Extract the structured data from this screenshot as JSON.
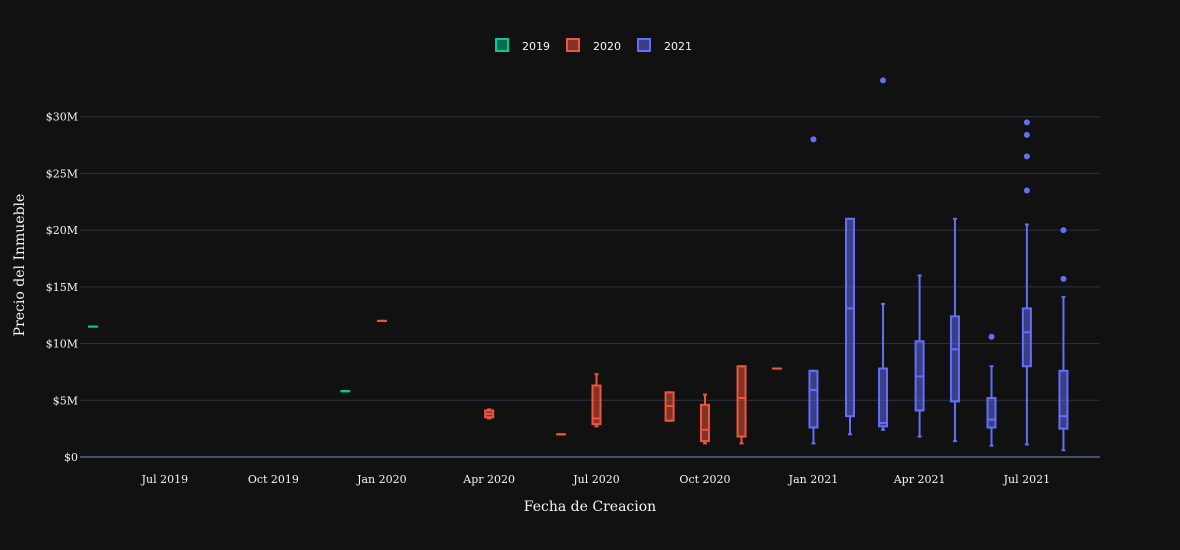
{
  "chart_data": {
    "type": "box",
    "title": "",
    "xlabel": "Fecha de Creacion",
    "ylabel": "Precio del Inmueble",
    "x_ticks": [
      {
        "date": "2019-07-01",
        "label": "Jul 2019"
      },
      {
        "date": "2019-10-01",
        "label": "Oct 2019"
      },
      {
        "date": "2020-01-01",
        "label": "Jan 2020"
      },
      {
        "date": "2020-04-01",
        "label": "Apr 2020"
      },
      {
        "date": "2020-07-01",
        "label": "Jul 2020"
      },
      {
        "date": "2020-10-01",
        "label": "Oct 2020"
      },
      {
        "date": "2021-01-01",
        "label": "Jan 2021"
      },
      {
        "date": "2021-04-01",
        "label": "Apr 2021"
      },
      {
        "date": "2021-07-01",
        "label": "Jul 2021"
      }
    ],
    "y_ticks": [
      {
        "value": 0,
        "label": "$0"
      },
      {
        "value": 5000000,
        "label": "$5M"
      },
      {
        "value": 10000000,
        "label": "$10M"
      },
      {
        "value": 15000000,
        "label": "$15M"
      },
      {
        "value": 20000000,
        "label": "$20M"
      },
      {
        "value": 25000000,
        "label": "$25M"
      },
      {
        "value": 30000000,
        "label": "$30M"
      }
    ],
    "xlim": [
      "2019-04-20",
      "2021-09-01"
    ],
    "ylim": [
      0,
      35000000
    ],
    "grid": true,
    "legend_position": "top-center",
    "series": [
      {
        "name": "2019",
        "color": "#00cc96",
        "boxes": [
          {
            "date": "2019-05-01",
            "min": 11500000,
            "q1": 11500000,
            "median": 11500000,
            "q3": 11500000,
            "max": 11500000,
            "outliers": []
          },
          {
            "date": "2019-12-01",
            "min": 5800000,
            "q1": 5800000,
            "median": 5800000,
            "q3": 5800000,
            "max": 5800000,
            "outliers": []
          }
        ]
      },
      {
        "name": "2020",
        "color": "#ef553b",
        "boxes": [
          {
            "date": "2020-01-01",
            "min": 12000000,
            "q1": 12000000,
            "median": 12000000,
            "q3": 12000000,
            "max": 12000000,
            "outliers": []
          },
          {
            "date": "2020-04-01",
            "min": 3400000,
            "q1": 3500000,
            "median": 3800000,
            "q3": 4100000,
            "max": 4200000,
            "outliers": []
          },
          {
            "date": "2020-06-01",
            "min": 2000000,
            "q1": 2000000,
            "median": 2000000,
            "q3": 2000000,
            "max": 2000000,
            "outliers": []
          },
          {
            "date": "2020-07-01",
            "min": 2700000,
            "q1": 2900000,
            "median": 3400000,
            "q3": 6300000,
            "max": 7300000,
            "outliers": []
          },
          {
            "date": "2020-09-01",
            "min": 3200000,
            "q1": 3200000,
            "median": 4500000,
            "q3": 5700000,
            "max": 5700000,
            "outliers": []
          },
          {
            "date": "2020-10-01",
            "min": 1200000,
            "q1": 1400000,
            "median": 2400000,
            "q3": 4600000,
            "max": 5500000,
            "outliers": []
          },
          {
            "date": "2020-11-01",
            "min": 1200000,
            "q1": 1800000,
            "median": 5200000,
            "q3": 8000000,
            "max": 8000000,
            "outliers": []
          },
          {
            "date": "2020-12-01",
            "min": 7800000,
            "q1": 7800000,
            "median": 7800000,
            "q3": 7800000,
            "max": 7800000,
            "outliers": []
          }
        ]
      },
      {
        "name": "2021",
        "color": "#636efa",
        "boxes": [
          {
            "date": "2021-01-01",
            "min": 1200000,
            "q1": 2600000,
            "median": 5900000,
            "q3": 7600000,
            "max": 7600000,
            "outliers": [
              28000000
            ]
          },
          {
            "date": "2021-02-01",
            "min": 2000000,
            "q1": 3600000,
            "median": 13100000,
            "q3": 21000000,
            "max": 21000000,
            "outliers": []
          },
          {
            "date": "2021-03-01",
            "min": 2400000,
            "q1": 2700000,
            "median": 3000000,
            "q3": 7800000,
            "max": 13500000,
            "outliers": [
              33200000
            ]
          },
          {
            "date": "2021-04-01",
            "min": 1800000,
            "q1": 4100000,
            "median": 7100000,
            "q3": 10200000,
            "max": 16000000,
            "outliers": []
          },
          {
            "date": "2021-05-01",
            "min": 1400000,
            "q1": 4900000,
            "median": 9500000,
            "q3": 12400000,
            "max": 21000000,
            "outliers": []
          },
          {
            "date": "2021-06-01",
            "min": 1000000,
            "q1": 2600000,
            "median": 3300000,
            "q3": 5200000,
            "max": 8000000,
            "outliers": [
              10600000
            ]
          },
          {
            "date": "2021-07-01",
            "min": 1100000,
            "q1": 8000000,
            "median": 11000000,
            "q3": 13100000,
            "max": 20500000,
            "outliers": [
              23500000,
              26500000,
              28400000,
              29500000
            ]
          },
          {
            "date": "2021-08-01",
            "min": 600000,
            "q1": 2500000,
            "median": 3600000,
            "q3": 7600000,
            "max": 14100000,
            "outliers": [
              15700000,
              20000000
            ]
          }
        ]
      }
    ]
  }
}
